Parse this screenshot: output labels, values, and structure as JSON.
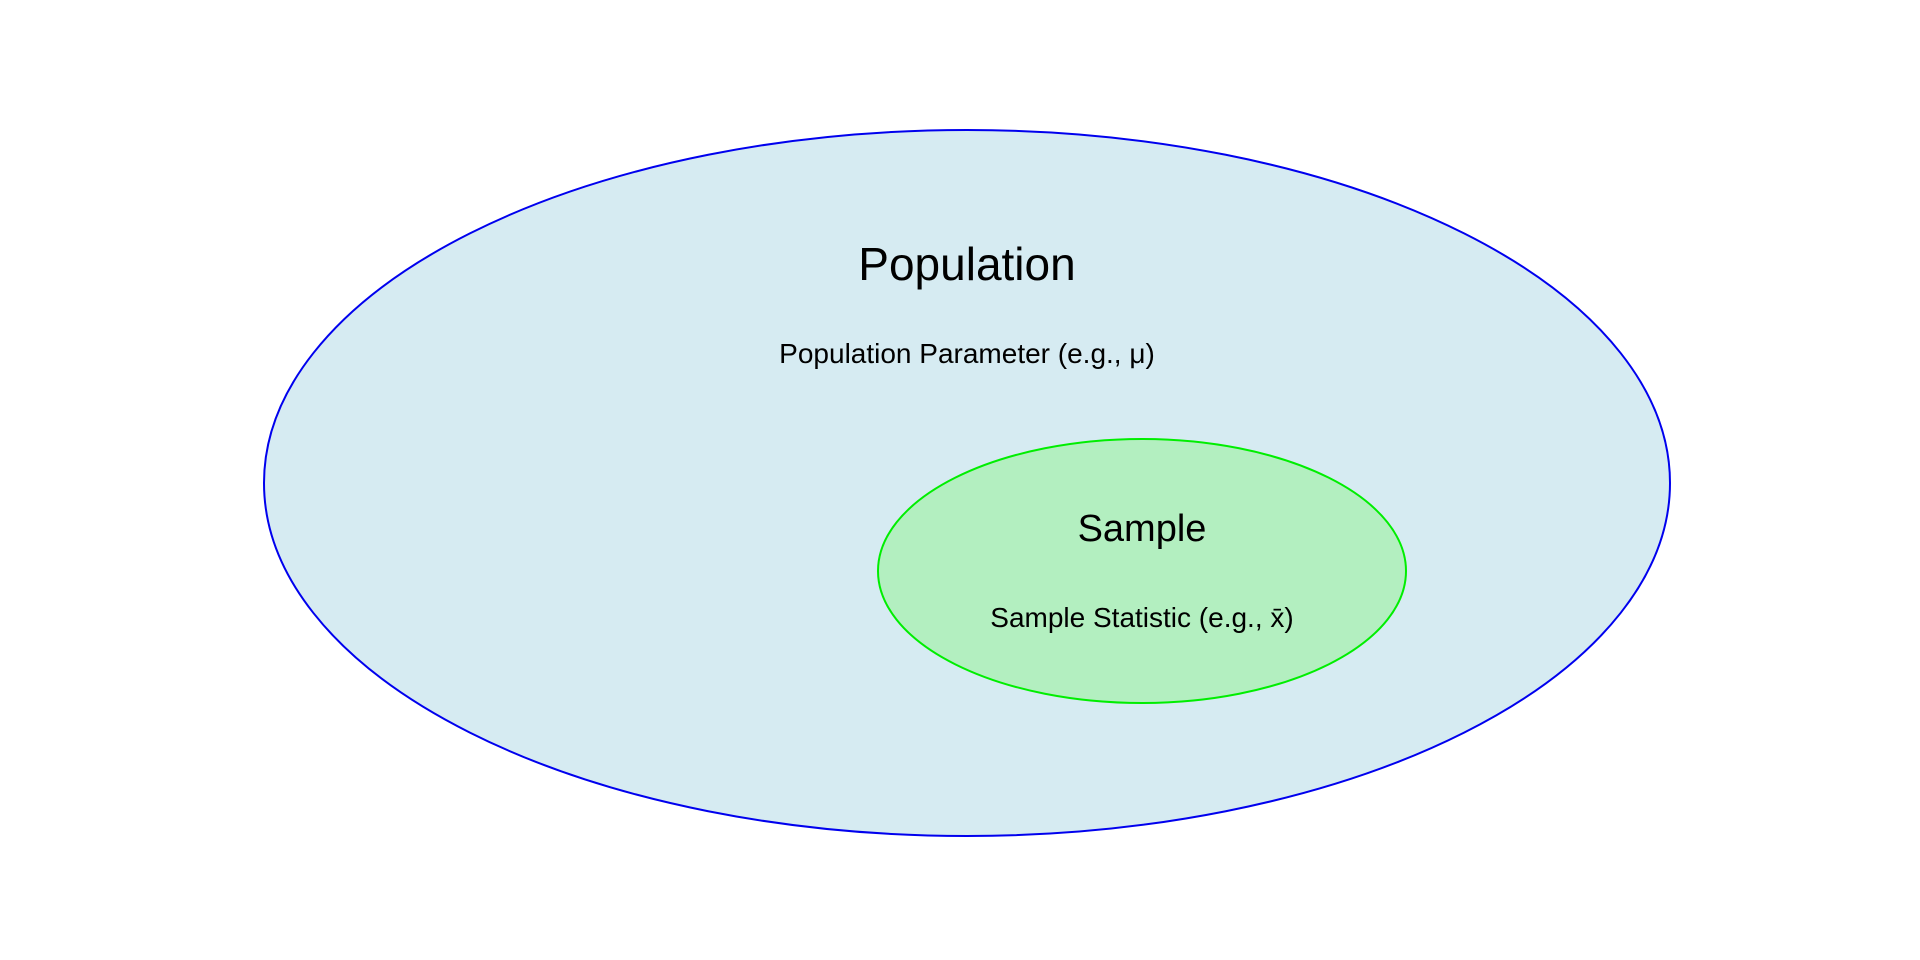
{
  "population": {
    "title": "Population",
    "subtitle": "Population Parameter (e.g., μ)",
    "fill": "#d6ebf2",
    "stroke": "#0000ee"
  },
  "sample": {
    "title": "Sample",
    "subtitle": "Sample Statistic (e.g., x̄)",
    "fill": "#b3efc0",
    "stroke": "#00ee00"
  }
}
